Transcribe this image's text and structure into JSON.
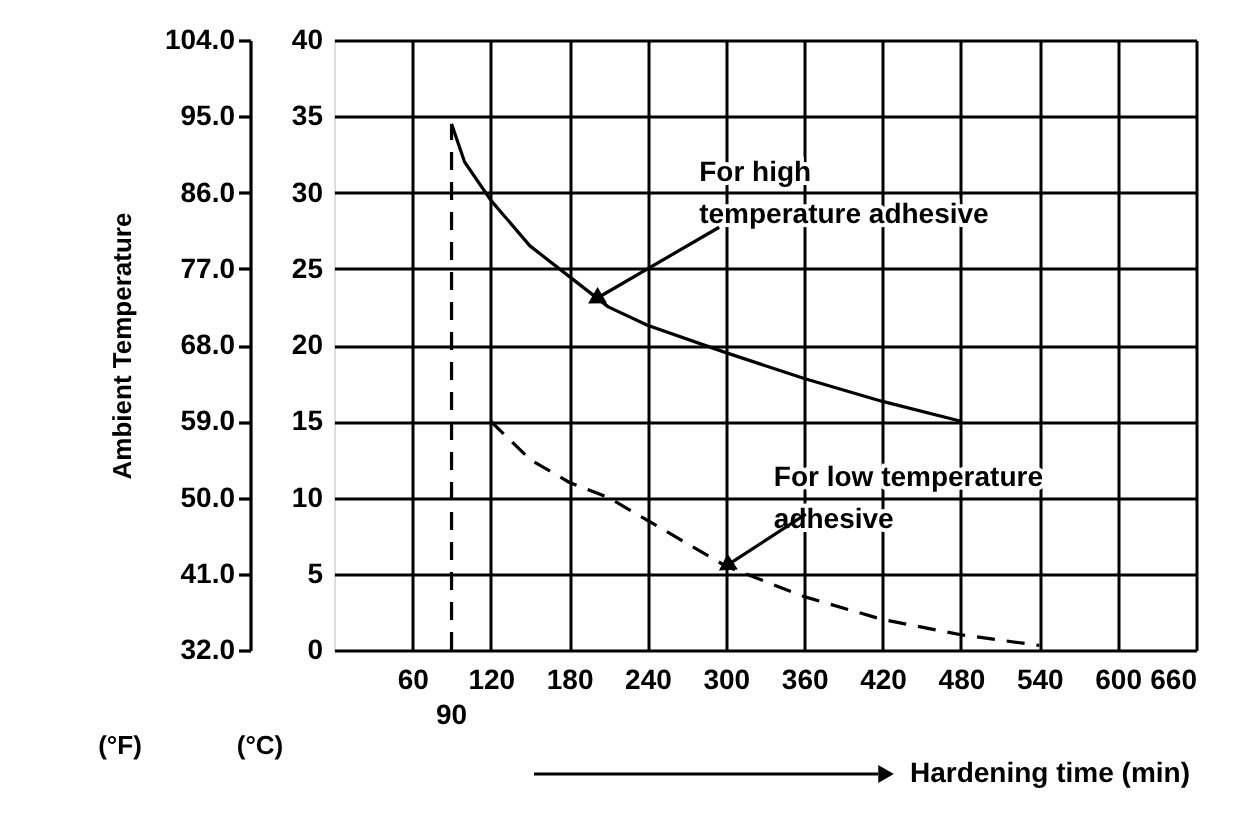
{
  "chart_data": {
    "type": "line",
    "y2label": "Ambient Temperature",
    "xlabel": "Hardening time (min)",
    "xlim": [
      0,
      660
    ],
    "xticks": [
      60,
      120,
      180,
      240,
      300,
      360,
      420,
      480,
      540,
      600,
      660
    ],
    "ylim": [
      0,
      40
    ],
    "yticks": [
      0,
      5,
      10,
      15,
      20,
      25,
      30,
      35,
      40
    ],
    "y2lim": [
      32,
      104
    ],
    "y2ticks": [
      {
        "value": 32,
        "label": "32.0"
      },
      {
        "value": 41,
        "label": "41.0"
      },
      {
        "value": 50,
        "label": "50.0"
      },
      {
        "value": 59,
        "label": "59.0"
      },
      {
        "value": 68,
        "label": "68.0"
      },
      {
        "value": 77,
        "label": "77.0"
      },
      {
        "value": 86,
        "label": "86.0"
      },
      {
        "value": 95,
        "label": "95.0"
      },
      {
        "value": 104,
        "label": "104.0"
      }
    ],
    "series": [
      {
        "color": "#000000",
        "line_style": "solid",
        "x": [
          90,
          100,
          120,
          150,
          180,
          210,
          240,
          300,
          360,
          420,
          480
        ],
        "values": [
          34.5,
          32,
          29.5,
          26.5,
          24.5,
          22.5,
          21.3,
          19.5,
          17.8,
          16.3,
          15
        ]
      },
      {
        "color": "#000000",
        "line_style": "dashed",
        "x": [
          120,
          150,
          180,
          210,
          240,
          300,
          360,
          420,
          480,
          540
        ],
        "values": [
          15,
          12.5,
          11,
          10,
          8.5,
          5.5,
          3.5,
          2,
          1,
          0.3
        ]
      }
    ],
    "ref_lines": [
      {
        "axis": "x",
        "value": 90,
        "label": "90",
        "line_style": "dashed",
        "color": "#000000"
      }
    ],
    "annotations": [
      {
        "text": "For high\ntemperature adhesive",
        "x": 200,
        "y": 23
      },
      {
        "text": "For low temperature\nadhesive",
        "x": 300,
        "y": 5.5
      },
      "(°F)",
      "(°C)"
    ],
    "grid": true,
    "legend": false,
    "marker": "none"
  }
}
